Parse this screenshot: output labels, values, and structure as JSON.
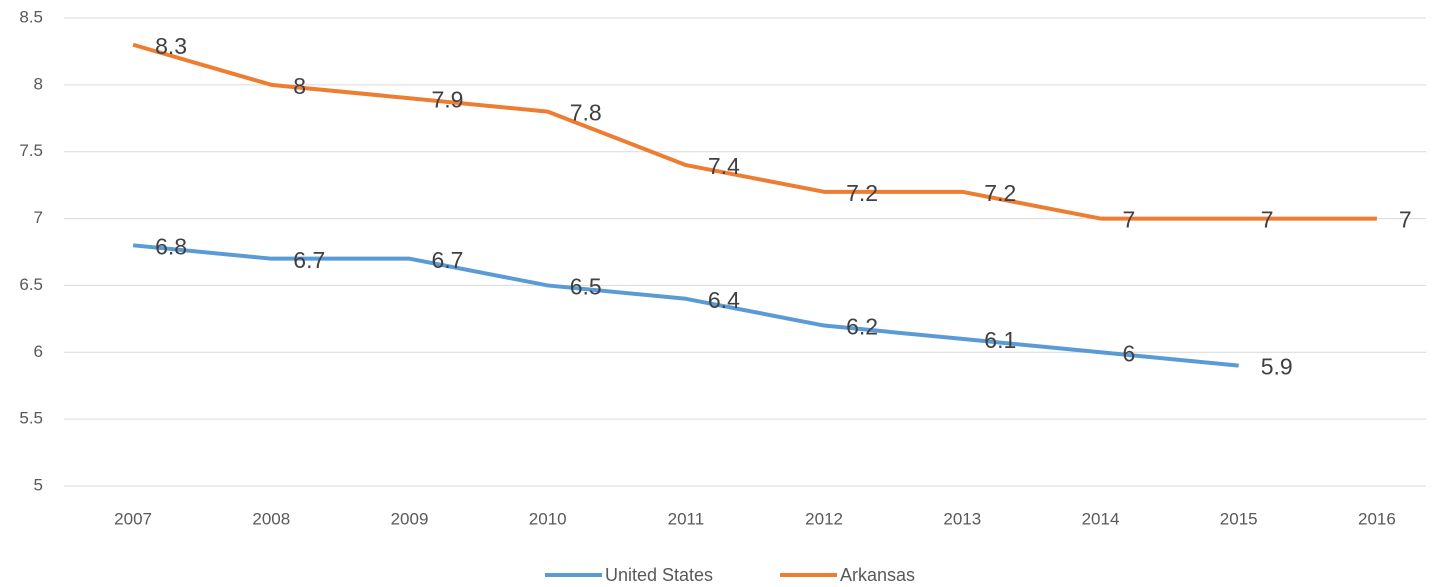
{
  "chart_data": {
    "type": "line",
    "categories": [
      "2007",
      "2008",
      "2009",
      "2010",
      "2011",
      "2012",
      "2013",
      "2014",
      "2015",
      "2016"
    ],
    "series": [
      {
        "name": "United States",
        "color": "#5b9bd5",
        "values": [
          6.8,
          6.7,
          6.7,
          6.5,
          6.4,
          6.2,
          6.1,
          6,
          5.9,
          null
        ]
      },
      {
        "name": "Arkansas",
        "color": "#ed7d31",
        "values": [
          8.3,
          8,
          7.9,
          7.8,
          7.4,
          7.2,
          7.2,
          7,
          7,
          7
        ]
      }
    ],
    "ylim": [
      5,
      8.5
    ],
    "yticks": [
      5,
      5.5,
      6,
      6.5,
      7,
      7.5,
      8,
      8.5
    ],
    "grid": true,
    "legend": "bottom"
  }
}
